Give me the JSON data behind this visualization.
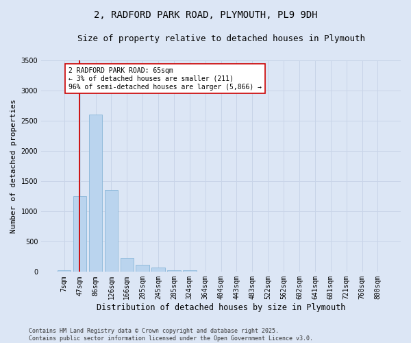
{
  "title": "2, RADFORD PARK ROAD, PLYMOUTH, PL9 9DH",
  "subtitle": "Size of property relative to detached houses in Plymouth",
  "xlabel": "Distribution of detached houses by size in Plymouth",
  "ylabel": "Number of detached properties",
  "categories": [
    "7sqm",
    "47sqm",
    "86sqm",
    "126sqm",
    "166sqm",
    "205sqm",
    "245sqm",
    "285sqm",
    "324sqm",
    "364sqm",
    "404sqm",
    "443sqm",
    "483sqm",
    "522sqm",
    "562sqm",
    "602sqm",
    "641sqm",
    "681sqm",
    "721sqm",
    "760sqm",
    "800sqm"
  ],
  "bar_values": [
    25,
    1250,
    2600,
    1350,
    230,
    120,
    70,
    25,
    25,
    0,
    0,
    0,
    0,
    0,
    0,
    0,
    0,
    0,
    0,
    0,
    0
  ],
  "bar_color": "#bad4ee",
  "bar_edge_color": "#7bafd4",
  "grid_color": "#c8d4e8",
  "background_color": "#dce6f5",
  "property_line_color": "#cc0000",
  "annotation_text": "2 RADFORD PARK ROAD: 65sqm\n← 3% of detached houses are smaller (211)\n96% of semi-detached houses are larger (5,866) →",
  "annotation_box_color": "#cc0000",
  "ylim": [
    0,
    3500
  ],
  "yticks": [
    0,
    500,
    1000,
    1500,
    2000,
    2500,
    3000,
    3500
  ],
  "footer": "Contains HM Land Registry data © Crown copyright and database right 2025.\nContains public sector information licensed under the Open Government Licence v3.0.",
  "title_fontsize": 10,
  "subtitle_fontsize": 9,
  "xlabel_fontsize": 8.5,
  "ylabel_fontsize": 8,
  "tick_fontsize": 7,
  "footer_fontsize": 6,
  "annotation_fontsize": 7
}
